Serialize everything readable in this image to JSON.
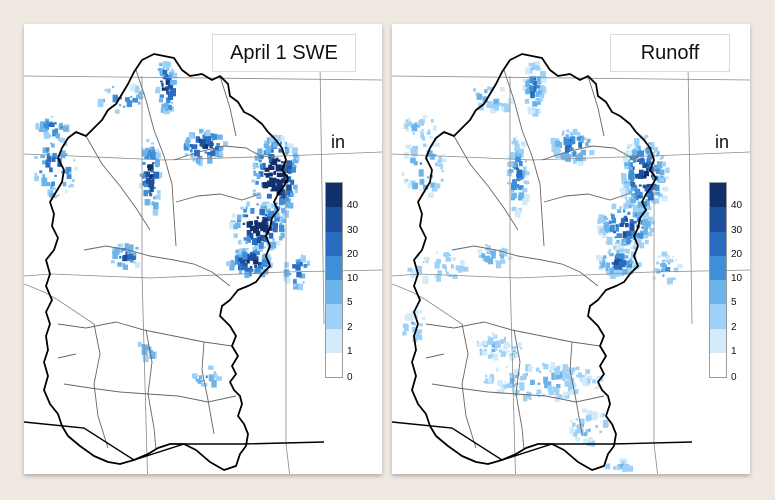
{
  "maps": [
    {
      "id": "swe",
      "title": "April 1 SWE",
      "unit": "in",
      "intensity": "high"
    },
    {
      "id": "runoff",
      "title": "Runoff",
      "unit": "in",
      "intensity": "low"
    }
  ],
  "legend": {
    "ticks": [
      "0",
      "1",
      "2",
      "5",
      "10",
      "20",
      "30",
      "40"
    ],
    "colors": [
      "#ffffff",
      "#d2ebfb",
      "#9ed1f5",
      "#6cb3ea",
      "#3e8ed8",
      "#2a6cbf",
      "#1c4f9c",
      "#122f6e"
    ]
  },
  "colors": {
    "background": "#efe9e2",
    "panel": "#ffffff",
    "basin_outline": "#000000",
    "state_lines": "#8a8a8a"
  }
}
